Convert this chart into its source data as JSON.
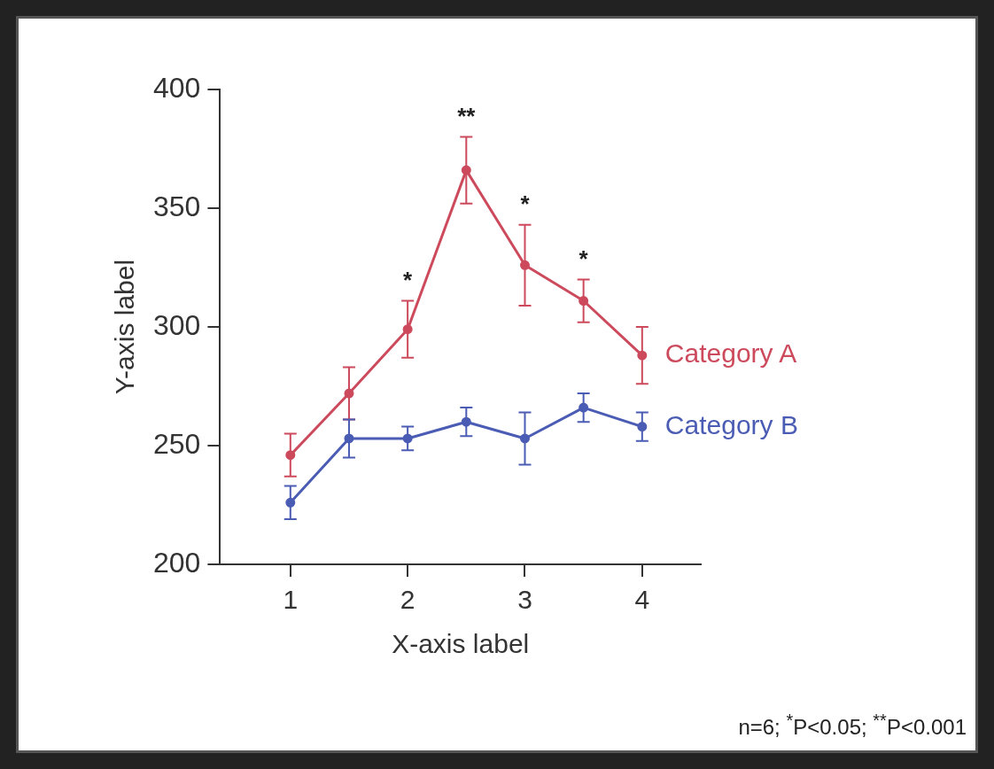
{
  "chart_data": {
    "type": "line",
    "xlabel": "X-axis label",
    "ylabel": "Y-axis label",
    "x": [
      1,
      1.5,
      2,
      2.5,
      3,
      3.5,
      4
    ],
    "xlim": [
      0.4,
      4.5
    ],
    "xticks": [
      1,
      2,
      3,
      4
    ],
    "ylim": [
      200,
      400
    ],
    "yticks": [
      200,
      250,
      300,
      350,
      400
    ],
    "grid": false,
    "legend": false,
    "marker": "circle",
    "line_style": "solid",
    "series": [
      {
        "name": "Category A",
        "color": "#cc4a5c",
        "values": [
          246,
          272,
          299,
          366,
          326,
          311,
          288
        ],
        "errors": [
          9,
          11,
          12,
          14,
          17,
          9,
          12
        ]
      },
      {
        "name": "Category B",
        "color": "#4a5cb4",
        "values": [
          226,
          253,
          253,
          260,
          253,
          266,
          258
        ],
        "errors": [
          7,
          8,
          5,
          6,
          11,
          6,
          6
        ]
      }
    ],
    "annotations": [
      {
        "text": "*",
        "x": 2,
        "y": 299
      },
      {
        "text": "**",
        "x": 2.5,
        "y": 366
      },
      {
        "text": "*",
        "x": 3,
        "y": 326
      },
      {
        "text": "*",
        "x": 3.5,
        "y": 311
      },
      "n=6; $^{*}$P<0.05; $^{**}$P<0.001"
    ]
  }
}
